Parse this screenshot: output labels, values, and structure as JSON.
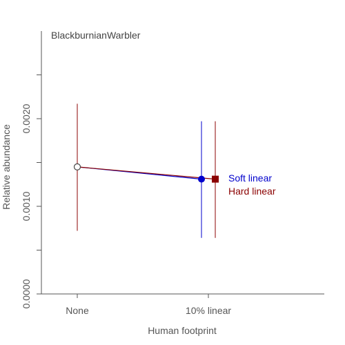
{
  "chart_data": {
    "type": "scatter",
    "title": "BlackburnianWarbler",
    "xlabel": "Human footprint",
    "ylabel": "Relative abundance",
    "categories": [
      "None",
      "10% linear"
    ],
    "ylim": [
      0,
      0.003
    ],
    "yticks": [
      0,
      0.0005,
      0.001,
      0.0015,
      0.002,
      0.0025
    ],
    "ytick_labels": [
      "0.0000",
      "0.0010",
      "0.0020"
    ],
    "ytick_labeled_values": [
      0,
      0.001,
      0.002
    ],
    "baseline": {
      "category": "None",
      "value": 0.00145,
      "lower": 0.00072,
      "upper": 0.00217,
      "marker_color": "#ffffff",
      "edge_color": "#444444"
    },
    "series": [
      {
        "name": "Soft linear",
        "color": "#0000cc",
        "marker": "circle",
        "category": "10% linear",
        "offset": -0.1,
        "value": 0.00131,
        "lower": 0.00064,
        "upper": 0.00197
      },
      {
        "name": "Hard linear",
        "color": "#8b0000",
        "marker": "square",
        "category": "10% linear",
        "offset": 0.1,
        "value": 0.00131,
        "lower": 0.00064,
        "upper": 0.00197
      }
    ],
    "grid": false,
    "legend_placement": "right of points"
  }
}
